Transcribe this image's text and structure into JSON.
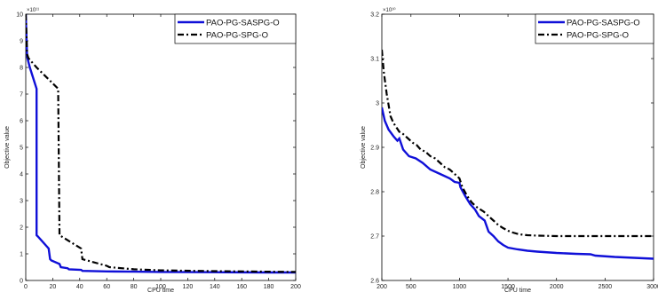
{
  "chart_data": [
    {
      "type": "line",
      "xlabel": "CPU time",
      "ylabel": "Objective value",
      "y_exponent_label": "×10¹¹",
      "xlim": [
        0,
        200
      ],
      "ylim": [
        0,
        10
      ],
      "xticks": [
        0,
        20,
        40,
        60,
        80,
        100,
        120,
        140,
        160,
        180,
        200
      ],
      "yticks": [
        0,
        1,
        2,
        3,
        4,
        5,
        6,
        7,
        8,
        9,
        10
      ],
      "legend_position": "top-right",
      "grid": false,
      "series": [
        {
          "name": "PAO-PG-SASPG-O",
          "color": "#1010d8",
          "style": "solid",
          "x": [
            0,
            1,
            3,
            8,
            8,
            9,
            17,
            18,
            19,
            25,
            26,
            31,
            32,
            41,
            42,
            60,
            80,
            100,
            140,
            180,
            200
          ],
          "y": [
            10,
            8.4,
            8.0,
            7.2,
            1.7,
            1.65,
            1.2,
            0.8,
            0.75,
            0.62,
            0.5,
            0.46,
            0.42,
            0.4,
            0.36,
            0.34,
            0.33,
            0.32,
            0.31,
            0.3,
            0.3
          ]
        },
        {
          "name": "PAO-PG-SPG-O",
          "color": "#000000",
          "style": "dashdot",
          "x": [
            0,
            1,
            2,
            8,
            24,
            25,
            41,
            42,
            60,
            62,
            80,
            100,
            140,
            180,
            200
          ],
          "y": [
            10,
            8.5,
            8.35,
            8.0,
            7.2,
            1.7,
            1.2,
            0.8,
            0.55,
            0.5,
            0.42,
            0.38,
            0.35,
            0.33,
            0.32
          ]
        }
      ]
    },
    {
      "type": "line",
      "xlabel": "CPU time",
      "ylabel": "Objective value",
      "y_exponent_label": "×10¹⁰",
      "xlim": [
        200,
        3000
      ],
      "ylim": [
        2.6,
        3.2
      ],
      "xticks": [
        200,
        500,
        1000,
        1500,
        2000,
        2500,
        3000
      ],
      "yticks": [
        2.6,
        2.7,
        2.8,
        2.9,
        3.0,
        3.1,
        3.2
      ],
      "ytick_labels": [
        "2.6",
        "2.7",
        "2.8",
        "2.9",
        "3",
        "3.1",
        "3.2"
      ],
      "legend_position": "top-right",
      "grid": false,
      "series": [
        {
          "name": "PAO-PG-SASPG-O",
          "color": "#1010d8",
          "style": "solid",
          "x": [
            200,
            230,
            270,
            320,
            360,
            380,
            420,
            480,
            550,
            620,
            700,
            800,
            900,
            950,
            1000,
            1010,
            1060,
            1110,
            1160,
            1200,
            1260,
            1300,
            1350,
            1400,
            1450,
            1500,
            1600,
            1700,
            1800,
            2000,
            2200,
            2350,
            2400,
            2600,
            2800,
            3000
          ],
          "y": [
            2.99,
            2.96,
            2.94,
            2.925,
            2.915,
            2.92,
            2.895,
            2.88,
            2.875,
            2.865,
            2.85,
            2.84,
            2.83,
            2.822,
            2.82,
            2.81,
            2.79,
            2.772,
            2.76,
            2.745,
            2.735,
            2.71,
            2.7,
            2.688,
            2.68,
            2.674,
            2.67,
            2.667,
            2.665,
            2.662,
            2.66,
            2.659,
            2.656,
            2.653,
            2.651,
            2.649
          ]
        },
        {
          "name": "PAO-PG-SPG-O",
          "color": "#000000",
          "style": "dashdot",
          "x": [
            200,
            220,
            250,
            290,
            320,
            350,
            380,
            420,
            470,
            520,
            560,
            600,
            650,
            700,
            750,
            800,
            850,
            900,
            950,
            1000,
            1030,
            1080,
            1130,
            1180,
            1250,
            1300,
            1350,
            1400,
            1450,
            1500,
            1550,
            1600,
            1650,
            1700,
            1800,
            2000,
            2500,
            3000
          ],
          "y": [
            3.12,
            3.07,
            3.02,
            2.97,
            2.955,
            2.945,
            2.935,
            2.93,
            2.92,
            2.91,
            2.905,
            2.895,
            2.89,
            2.88,
            2.875,
            2.865,
            2.855,
            2.85,
            2.84,
            2.83,
            2.81,
            2.79,
            2.775,
            2.765,
            2.755,
            2.745,
            2.735,
            2.725,
            2.718,
            2.712,
            2.708,
            2.705,
            2.703,
            2.702,
            2.701,
            2.7,
            2.7,
            2.7
          ]
        }
      ]
    }
  ]
}
